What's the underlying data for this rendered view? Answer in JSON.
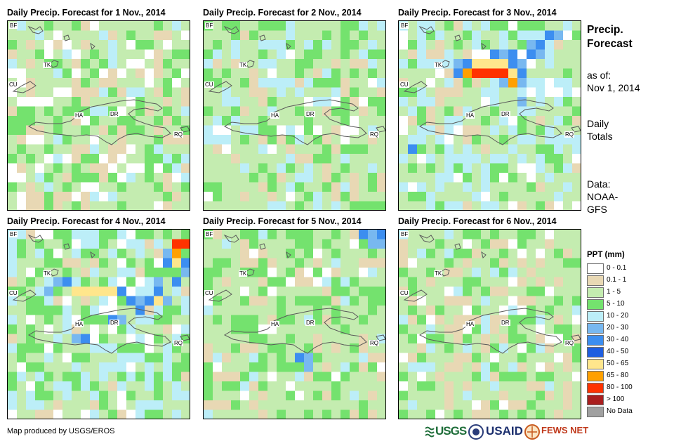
{
  "panels": [
    {
      "title": "Daily Precip. Forecast for 1 Nov., 2014"
    },
    {
      "title": "Daily Precip. Forecast for 2 Nov., 2014"
    },
    {
      "title": "Daily Precip. Forecast for 3 Nov., 2014"
    },
    {
      "title": "Daily Precip. Forecast for 4 Nov., 2014"
    },
    {
      "title": "Daily Precip. Forecast for 5 Nov., 2014"
    },
    {
      "title": "Daily Precip. Forecast for 6 Nov., 2014"
    }
  ],
  "map_labels": {
    "bf": "BF",
    "tk": "TK",
    "cu": "CU",
    "ha": "HA",
    "dr": "DR",
    "rq": "RQ"
  },
  "sidebar": {
    "title_line1": "Precip.",
    "title_line2": "Forecast",
    "asof_line1": "as of:",
    "asof_line2": "Nov 1, 2014",
    "daily_line1": "Daily",
    "daily_line2": "Totals",
    "data_line1": "Data:",
    "data_line2": "NOAA-",
    "data_line3": "GFS"
  },
  "legend": {
    "title": "PPT (mm)",
    "items": [
      {
        "label": "0 - 0.1",
        "color": "#ffffff"
      },
      {
        "label": "0.1 - 1",
        "color": "#e8d8b4"
      },
      {
        "label": "1 - 5",
        "color": "#c4ecb0"
      },
      {
        "label": "5 - 10",
        "color": "#74e26e"
      },
      {
        "label": "10 - 20",
        "color": "#bceef8"
      },
      {
        "label": "20 - 30",
        "color": "#78b8f0"
      },
      {
        "label": "30 - 40",
        "color": "#3c8ef0"
      },
      {
        "label": "40 - 50",
        "color": "#1e5ee0"
      },
      {
        "label": "50 - 65",
        "color": "#ffe68c"
      },
      {
        "label": "65 - 80",
        "color": "#ffa000"
      },
      {
        "label": "80 - 100",
        "color": "#ff3200"
      },
      {
        "label": "> 100",
        "color": "#aa1e1e"
      },
      {
        "label": "No Data",
        "color": "#a0a0a0"
      }
    ]
  },
  "footer": {
    "credit": "Map produced by USGS/EROS",
    "logo_usgs": "USGS",
    "logo_usaid": "USAID",
    "logo_fewsnet": "FEWS NET"
  }
}
